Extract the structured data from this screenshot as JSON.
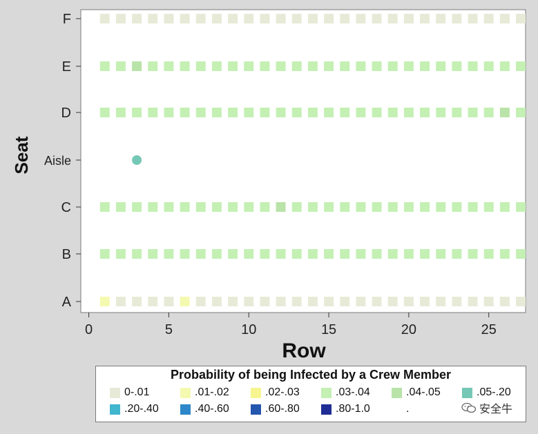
{
  "chart_data": {
    "type": "scatter",
    "xlabel": "Row",
    "ylabel": "Seat",
    "xlim": [
      -0.5,
      27.3
    ],
    "x_ticks": [
      "0",
      "5",
      "10",
      "15",
      "20",
      "25"
    ],
    "x_tick_values": [
      0,
      5,
      10,
      15,
      20,
      25
    ],
    "y_ticks": [
      "A",
      "B",
      "C",
      "Aisle",
      "D",
      "E",
      "F"
    ],
    "grid": false,
    "rows": [
      1,
      2,
      3,
      4,
      5,
      6,
      7,
      8,
      9,
      10,
      11,
      12,
      13,
      14,
      15,
      16,
      17,
      18,
      19,
      20,
      21,
      22,
      23,
      24,
      25,
      26,
      27
    ],
    "seats": {
      "F": [
        "0-.01",
        "0-.01",
        "0-.01",
        "0-.01",
        "0-.01",
        "0-.01",
        "0-.01",
        "0-.01",
        "0-.01",
        "0-.01",
        "0-.01",
        "0-.01",
        "0-.01",
        "0-.01",
        "0-.01",
        "0-.01",
        "0-.01",
        "0-.01",
        "0-.01",
        "0-.01",
        "0-.01",
        "0-.01",
        "0-.01",
        "0-.01",
        "0-.01",
        "0-.01",
        "0-.01"
      ],
      "E": [
        ".03-.04",
        ".03-.04",
        ".04-.05",
        ".03-.04",
        ".03-.04",
        ".03-.04",
        ".03-.04",
        ".03-.04",
        ".03-.04",
        ".03-.04",
        ".03-.04",
        ".03-.04",
        ".03-.04",
        ".03-.04",
        ".03-.04",
        ".03-.04",
        ".03-.04",
        ".03-.04",
        ".03-.04",
        ".03-.04",
        ".03-.04",
        ".03-.04",
        ".03-.04",
        ".03-.04",
        ".03-.04",
        ".03-.04",
        ".03-.04"
      ],
      "D": [
        ".03-.04",
        ".03-.04",
        ".03-.04",
        ".03-.04",
        ".03-.04",
        ".03-.04",
        ".03-.04",
        ".03-.04",
        ".03-.04",
        ".03-.04",
        ".03-.04",
        ".03-.04",
        ".03-.04",
        ".03-.04",
        ".03-.04",
        ".03-.04",
        ".03-.04",
        ".03-.04",
        ".03-.04",
        ".03-.04",
        ".03-.04",
        ".03-.04",
        ".03-.04",
        ".03-.04",
        ".03-.04",
        ".04-.05",
        ".03-.04"
      ],
      "C": [
        ".03-.04",
        ".03-.04",
        ".03-.04",
        ".03-.04",
        ".03-.04",
        ".03-.04",
        ".03-.04",
        ".03-.04",
        ".03-.04",
        ".03-.04",
        ".03-.04",
        ".04-.05",
        ".03-.04",
        ".03-.04",
        ".03-.04",
        ".03-.04",
        ".03-.04",
        ".03-.04",
        ".03-.04",
        ".03-.04",
        ".03-.04",
        ".03-.04",
        ".03-.04",
        ".03-.04",
        ".03-.04",
        ".03-.04",
        ".03-.04"
      ],
      "B": [
        ".03-.04",
        ".03-.04",
        ".03-.04",
        ".03-.04",
        ".03-.04",
        ".03-.04",
        ".03-.04",
        ".03-.04",
        ".03-.04",
        ".03-.04",
        ".03-.04",
        ".03-.04",
        ".03-.04",
        ".03-.04",
        ".03-.04",
        ".03-.04",
        ".03-.04",
        ".03-.04",
        ".03-.04",
        ".03-.04",
        ".03-.04",
        ".03-.04",
        ".03-.04",
        ".03-.04",
        ".03-.04",
        ".03-.04",
        ".03-.04"
      ],
      "A": [
        ".01-.02",
        "0-.01",
        "0-.01",
        "0-.01",
        "0-.01",
        ".01-.02",
        "0-.01",
        "0-.01",
        "0-.01",
        "0-.01",
        "0-.01",
        "0-.01",
        "0-.01",
        "0-.01",
        "0-.01",
        "0-.01",
        "0-.01",
        "0-.01",
        "0-.01",
        "0-.01",
        "0-.01",
        "0-.01",
        "0-.01",
        "0-.01",
        "0-.01",
        "0-.01",
        "0-.01"
      ]
    },
    "crew": [
      {
        "row": 3,
        "seat": "Aisle",
        "category": ".05-.20"
      }
    ],
    "legend": {
      "title": "Probability of being Infected by a Crew Member",
      "placement": "bottom",
      "items": [
        {
          "label": "0-.01",
          "color": "#e8ead8"
        },
        {
          "label": ".01-.02",
          "color": "#f4f9b0"
        },
        {
          "label": ".02-.03",
          "color": "#f6f590"
        },
        {
          "label": ".03-.04",
          "color": "#c4f0b4"
        },
        {
          "label": ".04-.05",
          "color": "#b9e3a8"
        },
        {
          "label": ".05-.20",
          "color": "#76c8b6"
        },
        {
          "label": ".20-.40",
          "color": "#40b6cf"
        },
        {
          "label": ".40-.60",
          "color": "#2d87c8"
        },
        {
          "label": ".60-.80",
          "color": "#2456ae"
        },
        {
          "label": ".80-1.0",
          "color": "#1f2d94"
        },
        {
          "label": ".",
          "color": "#ffffff"
        }
      ]
    }
  },
  "watermark": {
    "text": "安全牛",
    "icon": "wechat-icon"
  }
}
